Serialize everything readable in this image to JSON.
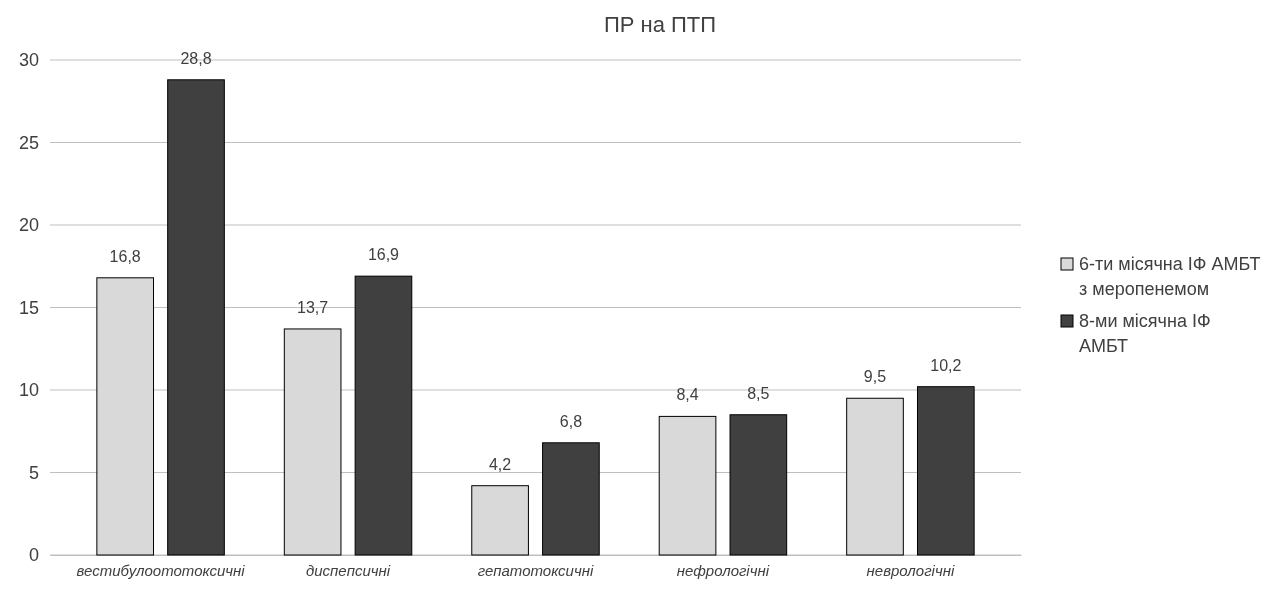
{
  "chart_data": {
    "type": "bar",
    "title": "ПР на ПТП",
    "categories": [
      "вестибулоототоксичні",
      "диспепсичні",
      "гепатотоксичні",
      "нефрологічні",
      "неврологічні"
    ],
    "series": [
      {
        "name": "6-ти місячна ІФ АМБТ з меропенемом",
        "color": "#d9d9d9",
        "values": [
          16.8,
          13.7,
          4.2,
          8.4,
          9.5
        ],
        "value_labels": [
          "16,8",
          "13,7",
          "4,2",
          "8,4",
          "9,5"
        ]
      },
      {
        "name": "8-ми місячна ІФ АМБТ",
        "color": "#404040",
        "values": [
          28.8,
          16.9,
          6.8,
          8.5,
          10.2
        ],
        "value_labels": [
          "28,8",
          "16,9",
          "6,8",
          "8,5",
          "10,2"
        ]
      }
    ],
    "ylim": [
      0,
      30
    ],
    "yticks": [
      0,
      5,
      10,
      15,
      20,
      25,
      30
    ],
    "grid": "y",
    "legend": "right"
  }
}
